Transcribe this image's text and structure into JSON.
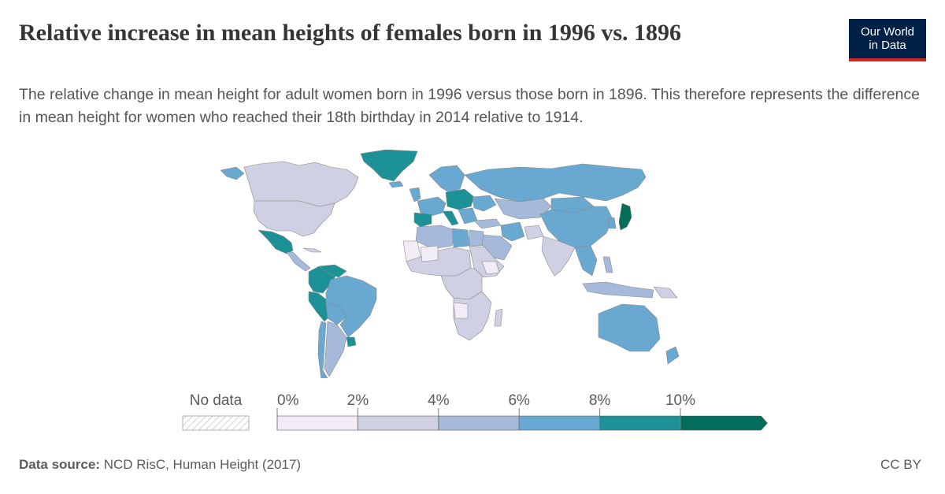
{
  "header": {
    "title": "Relative increase in mean heights of females born in 1996 vs. 1896",
    "subtitle": "The relative change in mean height for adult women born in 1996 versus those born in 1896. This therefore represents the difference in mean height for women who reached their 18th birthday in 2014 relative to 1914.",
    "logo_line1": "Our World",
    "logo_line2": "in Data"
  },
  "legend": {
    "no_data_label": "No data",
    "ticks": [
      "0%",
      "2%",
      "4%",
      "6%",
      "8%",
      "10%"
    ],
    "bins": [
      {
        "range": [
          0,
          2
        ],
        "color": "#f1ecf5"
      },
      {
        "range": [
          2,
          4
        ],
        "color": "#cfd0e4"
      },
      {
        "range": [
          4,
          6
        ],
        "color": "#a5b9da"
      },
      {
        "range": [
          6,
          8
        ],
        "color": "#69a8d0"
      },
      {
        "range": [
          8,
          10
        ],
        "color": "#1c9297"
      },
      {
        "range": [
          10,
          12
        ],
        "color": "#036d5c"
      }
    ]
  },
  "colors": {
    "bin0": "#f1ecf5",
    "bin1": "#cfd0e4",
    "bin2": "#a5b9da",
    "bin3": "#69a8d0",
    "bin4": "#1c9297",
    "bin5": "#036d5c",
    "logo_bg": "#002147",
    "logo_accent": "#ce261e"
  },
  "footer": {
    "source_label": "Data source:",
    "source_text": " NCD RisC, Human Height (2017)",
    "license": "CC BY"
  }
}
